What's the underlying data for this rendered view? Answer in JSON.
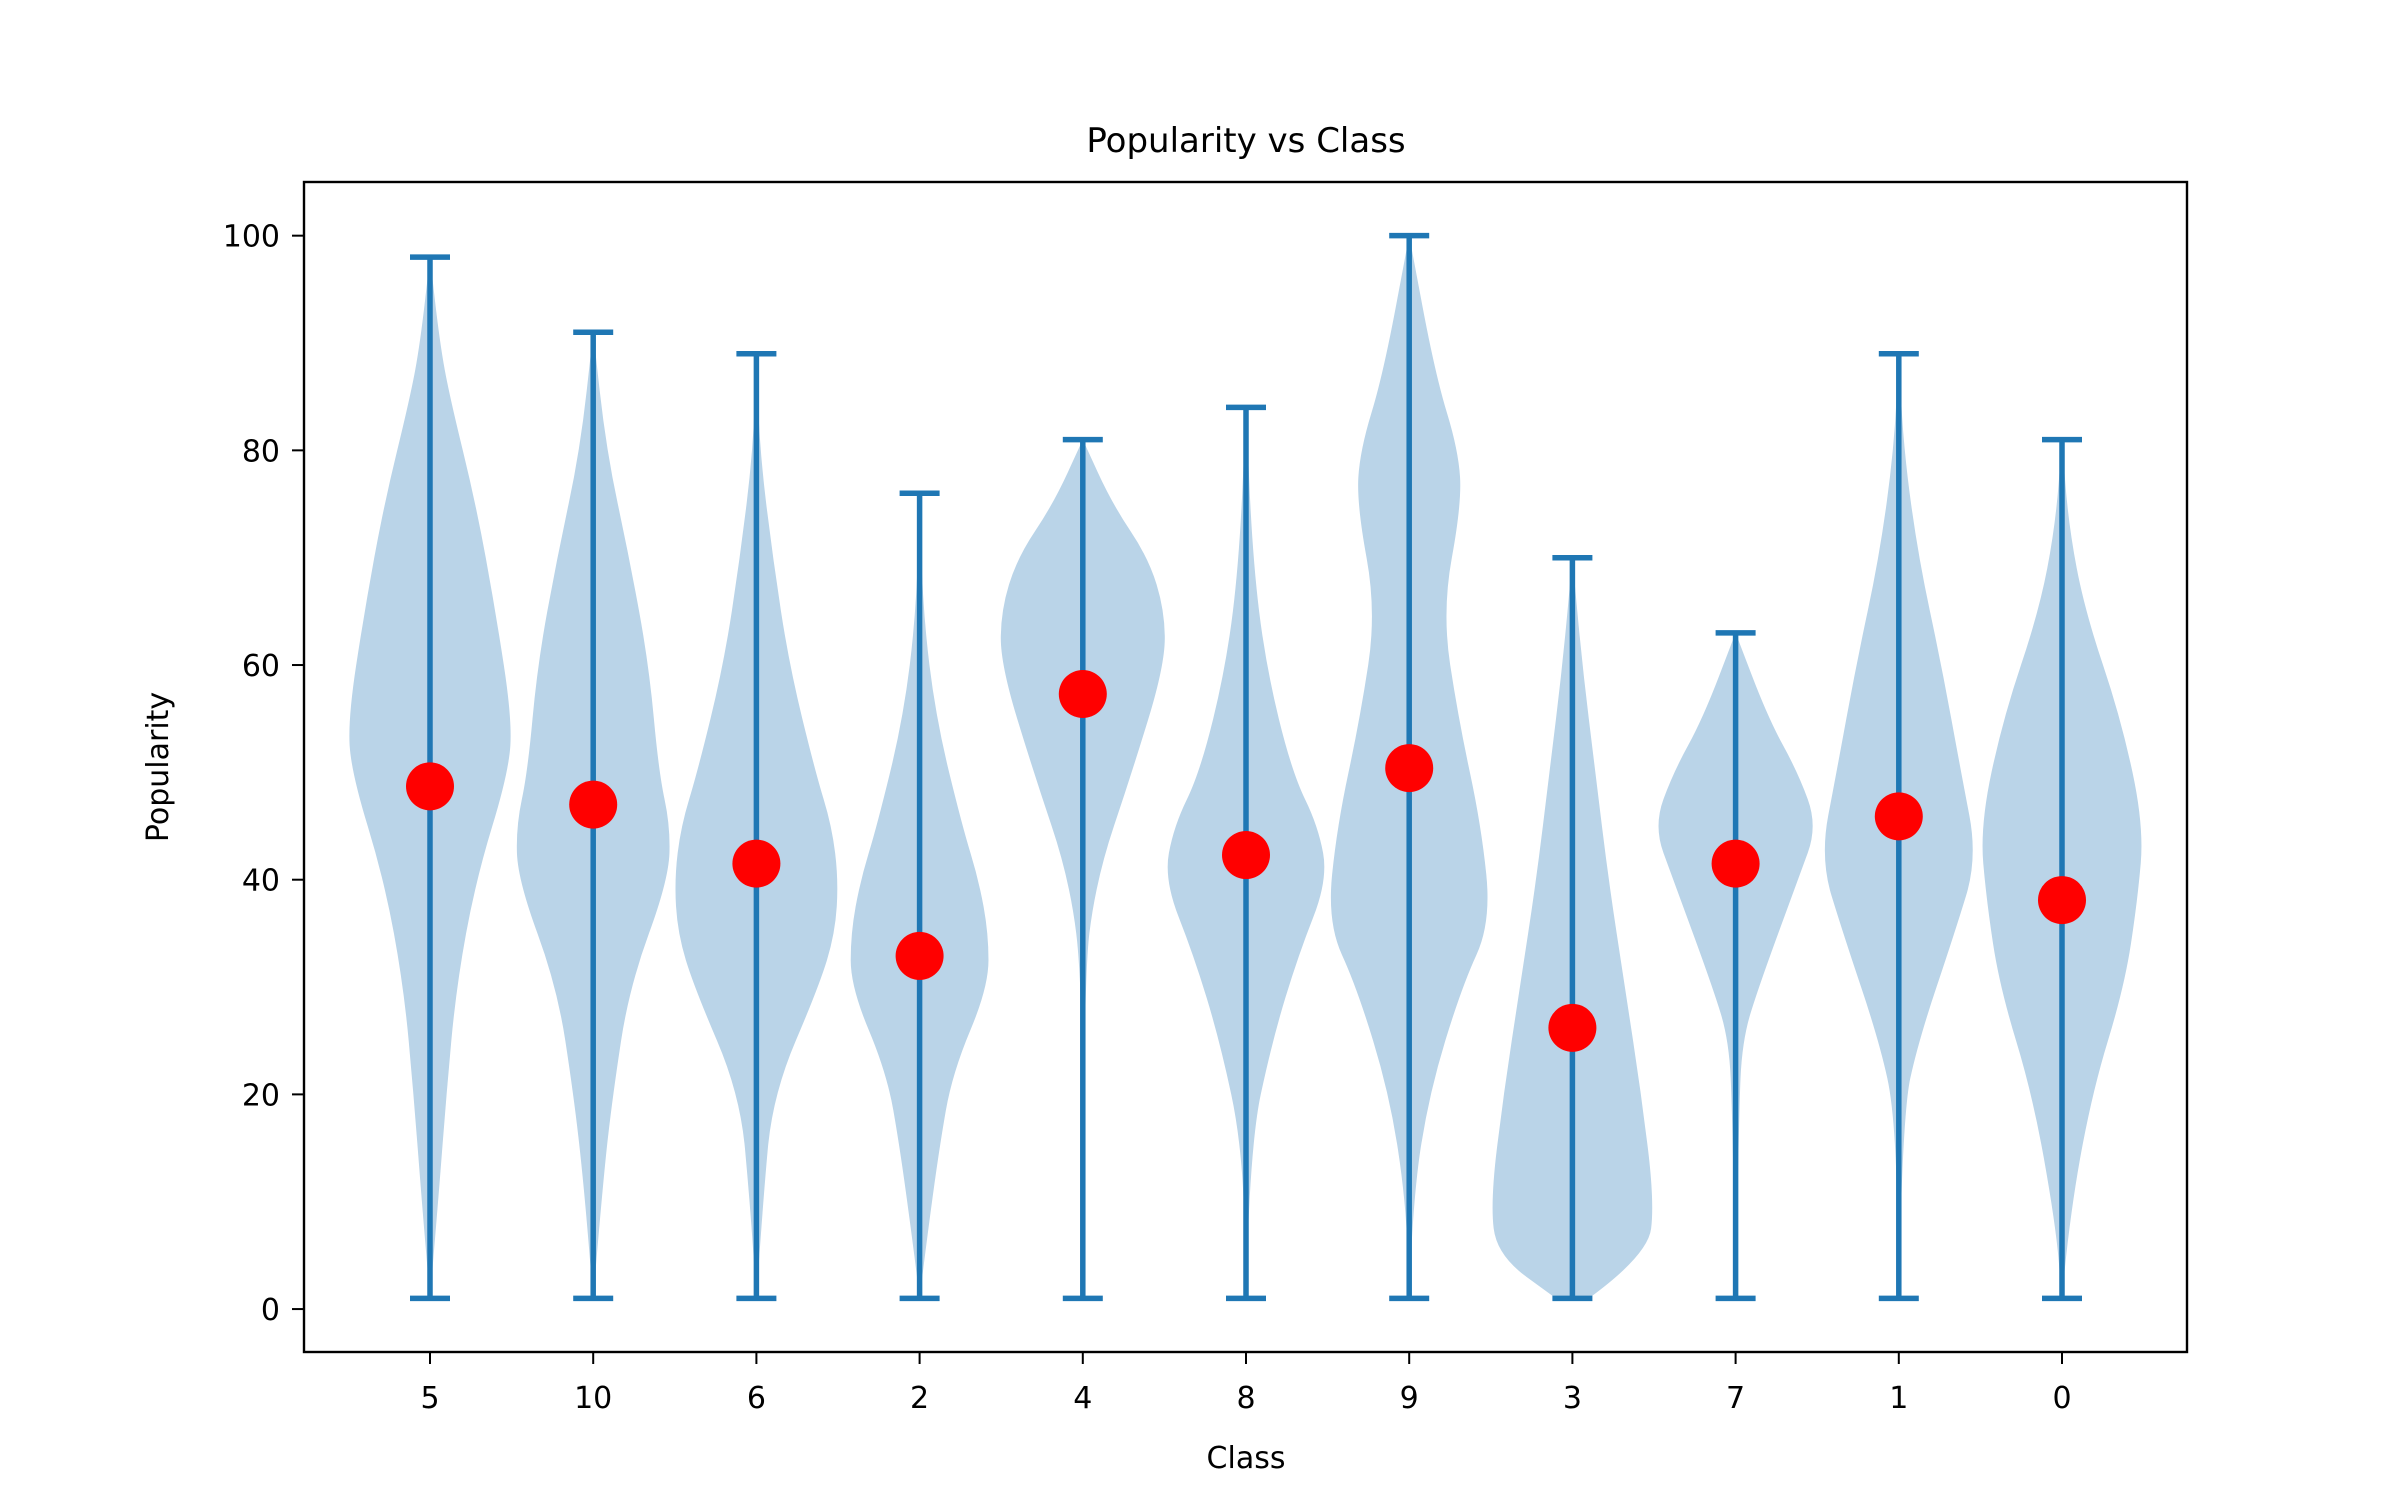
{
  "chart_data": {
    "type": "violin",
    "title": "Popularity vs Class",
    "xlabel": "Class",
    "ylabel": "Popularity",
    "ylim": [
      -4,
      105
    ],
    "yticks": [
      0,
      20,
      40,
      60,
      80,
      100
    ],
    "categories": [
      "5",
      "10",
      "6",
      "2",
      "4",
      "8",
      "9",
      "3",
      "7",
      "1",
      "0"
    ],
    "colors": {
      "violin_fill": "#bad4e8",
      "whisker": "#1f77b4",
      "mean_marker": "#ff0000"
    },
    "grid": false,
    "legend": "none",
    "violins": [
      {
        "category": "5",
        "min": 1,
        "max": 98,
        "mean": 48.7,
        "profile": [
          [
            1,
            0
          ],
          [
            10,
            0.05
          ],
          [
            20,
            0.1
          ],
          [
            30,
            0.16
          ],
          [
            40,
            0.28
          ],
          [
            50,
            0.48
          ],
          [
            55,
            0.5
          ],
          [
            65,
            0.4
          ],
          [
            75,
            0.28
          ],
          [
            85,
            0.12
          ],
          [
            90,
            0.06
          ],
          [
            98,
            0
          ]
        ]
      },
      {
        "category": "10",
        "min": 1,
        "max": 91,
        "mean": 47.0,
        "profile": [
          [
            1,
            0
          ],
          [
            12,
            0.06
          ],
          [
            20,
            0.12
          ],
          [
            30,
            0.22
          ],
          [
            40,
            0.46
          ],
          [
            45,
            0.47
          ],
          [
            50,
            0.4
          ],
          [
            60,
            0.34
          ],
          [
            70,
            0.22
          ],
          [
            80,
            0.08
          ],
          [
            91,
            0
          ]
        ]
      },
      {
        "category": "6",
        "min": 1,
        "max": 89,
        "mean": 41.5,
        "profile": [
          [
            1,
            0
          ],
          [
            10,
            0.04
          ],
          [
            20,
            0.1
          ],
          [
            30,
            0.38
          ],
          [
            35,
            0.48
          ],
          [
            40,
            0.5
          ],
          [
            45,
            0.46
          ],
          [
            50,
            0.36
          ],
          [
            60,
            0.2
          ],
          [
            70,
            0.1
          ],
          [
            80,
            0.02
          ],
          [
            89,
            0
          ]
        ]
      },
      {
        "category": "2",
        "min": 1,
        "max": 76,
        "mean": 32.9,
        "profile": [
          [
            1,
            0
          ],
          [
            6,
            0.04
          ],
          [
            15,
            0.12
          ],
          [
            22,
            0.2
          ],
          [
            30,
            0.42
          ],
          [
            35,
            0.42
          ],
          [
            40,
            0.36
          ],
          [
            45,
            0.26
          ],
          [
            55,
            0.1
          ],
          [
            65,
            0.02
          ],
          [
            76,
            0
          ]
        ]
      },
      {
        "category": "4",
        "min": 1,
        "max": 81,
        "mean": 57.3,
        "profile": [
          [
            1,
            0
          ],
          [
            30,
            0
          ],
          [
            40,
            0.08
          ],
          [
            50,
            0.3
          ],
          [
            60,
            0.5
          ],
          [
            65,
            0.5
          ],
          [
            70,
            0.4
          ],
          [
            75,
            0.18
          ],
          [
            81,
            0
          ]
        ]
      },
      {
        "category": "8",
        "min": 1,
        "max": 84,
        "mean": 42.3,
        "profile": [
          [
            1,
            0
          ],
          [
            15,
            0.02
          ],
          [
            25,
            0.16
          ],
          [
            33,
            0.32
          ],
          [
            40,
            0.5
          ],
          [
            45,
            0.44
          ],
          [
            50,
            0.28
          ],
          [
            60,
            0.12
          ],
          [
            70,
            0.04
          ],
          [
            84,
            0
          ]
        ]
      },
      {
        "category": "9",
        "min": 1,
        "max": 100,
        "mean": 50.4,
        "profile": [
          [
            1,
            0
          ],
          [
            10,
            0.02
          ],
          [
            20,
            0.12
          ],
          [
            30,
            0.32
          ],
          [
            36,
            0.5
          ],
          [
            45,
            0.44
          ],
          [
            55,
            0.3
          ],
          [
            65,
            0.2
          ],
          [
            75,
            0.32
          ],
          [
            80,
            0.3
          ],
          [
            87,
            0.16
          ],
          [
            100,
            0
          ]
        ]
      },
      {
        "category": "3",
        "min": 1,
        "max": 70,
        "mean": 26.2,
        "profile": [
          [
            1,
            0.1
          ],
          [
            5,
            0.46
          ],
          [
            10,
            0.5
          ],
          [
            20,
            0.42
          ],
          [
            30,
            0.32
          ],
          [
            40,
            0.22
          ],
          [
            50,
            0.14
          ],
          [
            60,
            0.06
          ],
          [
            70,
            0
          ]
        ]
      },
      {
        "category": "7",
        "min": 1,
        "max": 63,
        "mean": 41.5,
        "profile": [
          [
            1,
            0
          ],
          [
            18,
            0.02
          ],
          [
            25,
            0.04
          ],
          [
            30,
            0.14
          ],
          [
            40,
            0.38
          ],
          [
            45,
            0.5
          ],
          [
            50,
            0.38
          ],
          [
            55,
            0.2
          ],
          [
            63,
            0
          ]
        ]
      },
      {
        "category": "1",
        "min": 1,
        "max": 89,
        "mean": 45.9,
        "profile": [
          [
            1,
            0
          ],
          [
            18,
            0.02
          ],
          [
            25,
            0.12
          ],
          [
            35,
            0.34
          ],
          [
            42,
            0.48
          ],
          [
            50,
            0.38
          ],
          [
            60,
            0.26
          ],
          [
            70,
            0.12
          ],
          [
            80,
            0.03
          ],
          [
            89,
            0
          ]
        ]
      },
      {
        "category": "0",
        "min": 1,
        "max": 81,
        "mean": 38.1,
        "profile": [
          [
            1,
            0
          ],
          [
            8,
            0.04
          ],
          [
            20,
            0.18
          ],
          [
            30,
            0.38
          ],
          [
            38,
            0.46
          ],
          [
            45,
            0.5
          ],
          [
            55,
            0.36
          ],
          [
            65,
            0.14
          ],
          [
            73,
            0.04
          ],
          [
            81,
            0
          ]
        ]
      }
    ]
  }
}
